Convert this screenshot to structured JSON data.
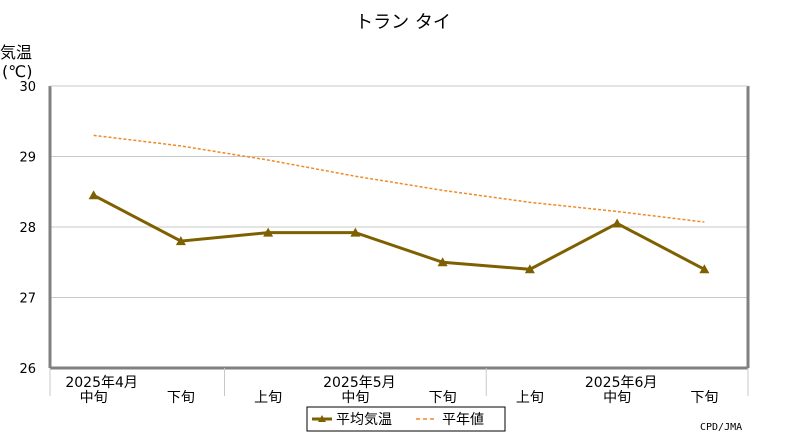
{
  "chart_data": {
    "type": "line",
    "title": "トラン タイ",
    "ylabel": "気温",
    "yunit": "(℃)",
    "ylim": [
      26,
      30
    ],
    "yticks": [
      26,
      27,
      28,
      29,
      30
    ],
    "grid": true,
    "x_groups": [
      {
        "label": "2025年4月",
        "categories": [
          "中旬",
          "下旬"
        ]
      },
      {
        "label": "2025年5月",
        "categories": [
          "上旬",
          "中旬",
          "下旬"
        ]
      },
      {
        "label": "2025年6月",
        "categories": [
          "上旬",
          "中旬",
          "下旬"
        ]
      }
    ],
    "categories": [
      "中旬",
      "下旬",
      "上旬",
      "中旬",
      "下旬",
      "上旬",
      "中旬",
      "下旬"
    ],
    "series": [
      {
        "name": "平均気温",
        "style": "solid-triangle",
        "color": "#7f6000",
        "values": [
          28.45,
          27.8,
          27.92,
          27.92,
          27.5,
          27.4,
          28.05,
          27.4
        ]
      },
      {
        "name": "平年値",
        "style": "dashed",
        "color": "#f08a24",
        "values": [
          29.3,
          29.15,
          28.95,
          28.72,
          28.52,
          28.35,
          28.22,
          28.07
        ]
      }
    ],
    "legend": "bottom-center",
    "credit": "CPD/JMA"
  }
}
